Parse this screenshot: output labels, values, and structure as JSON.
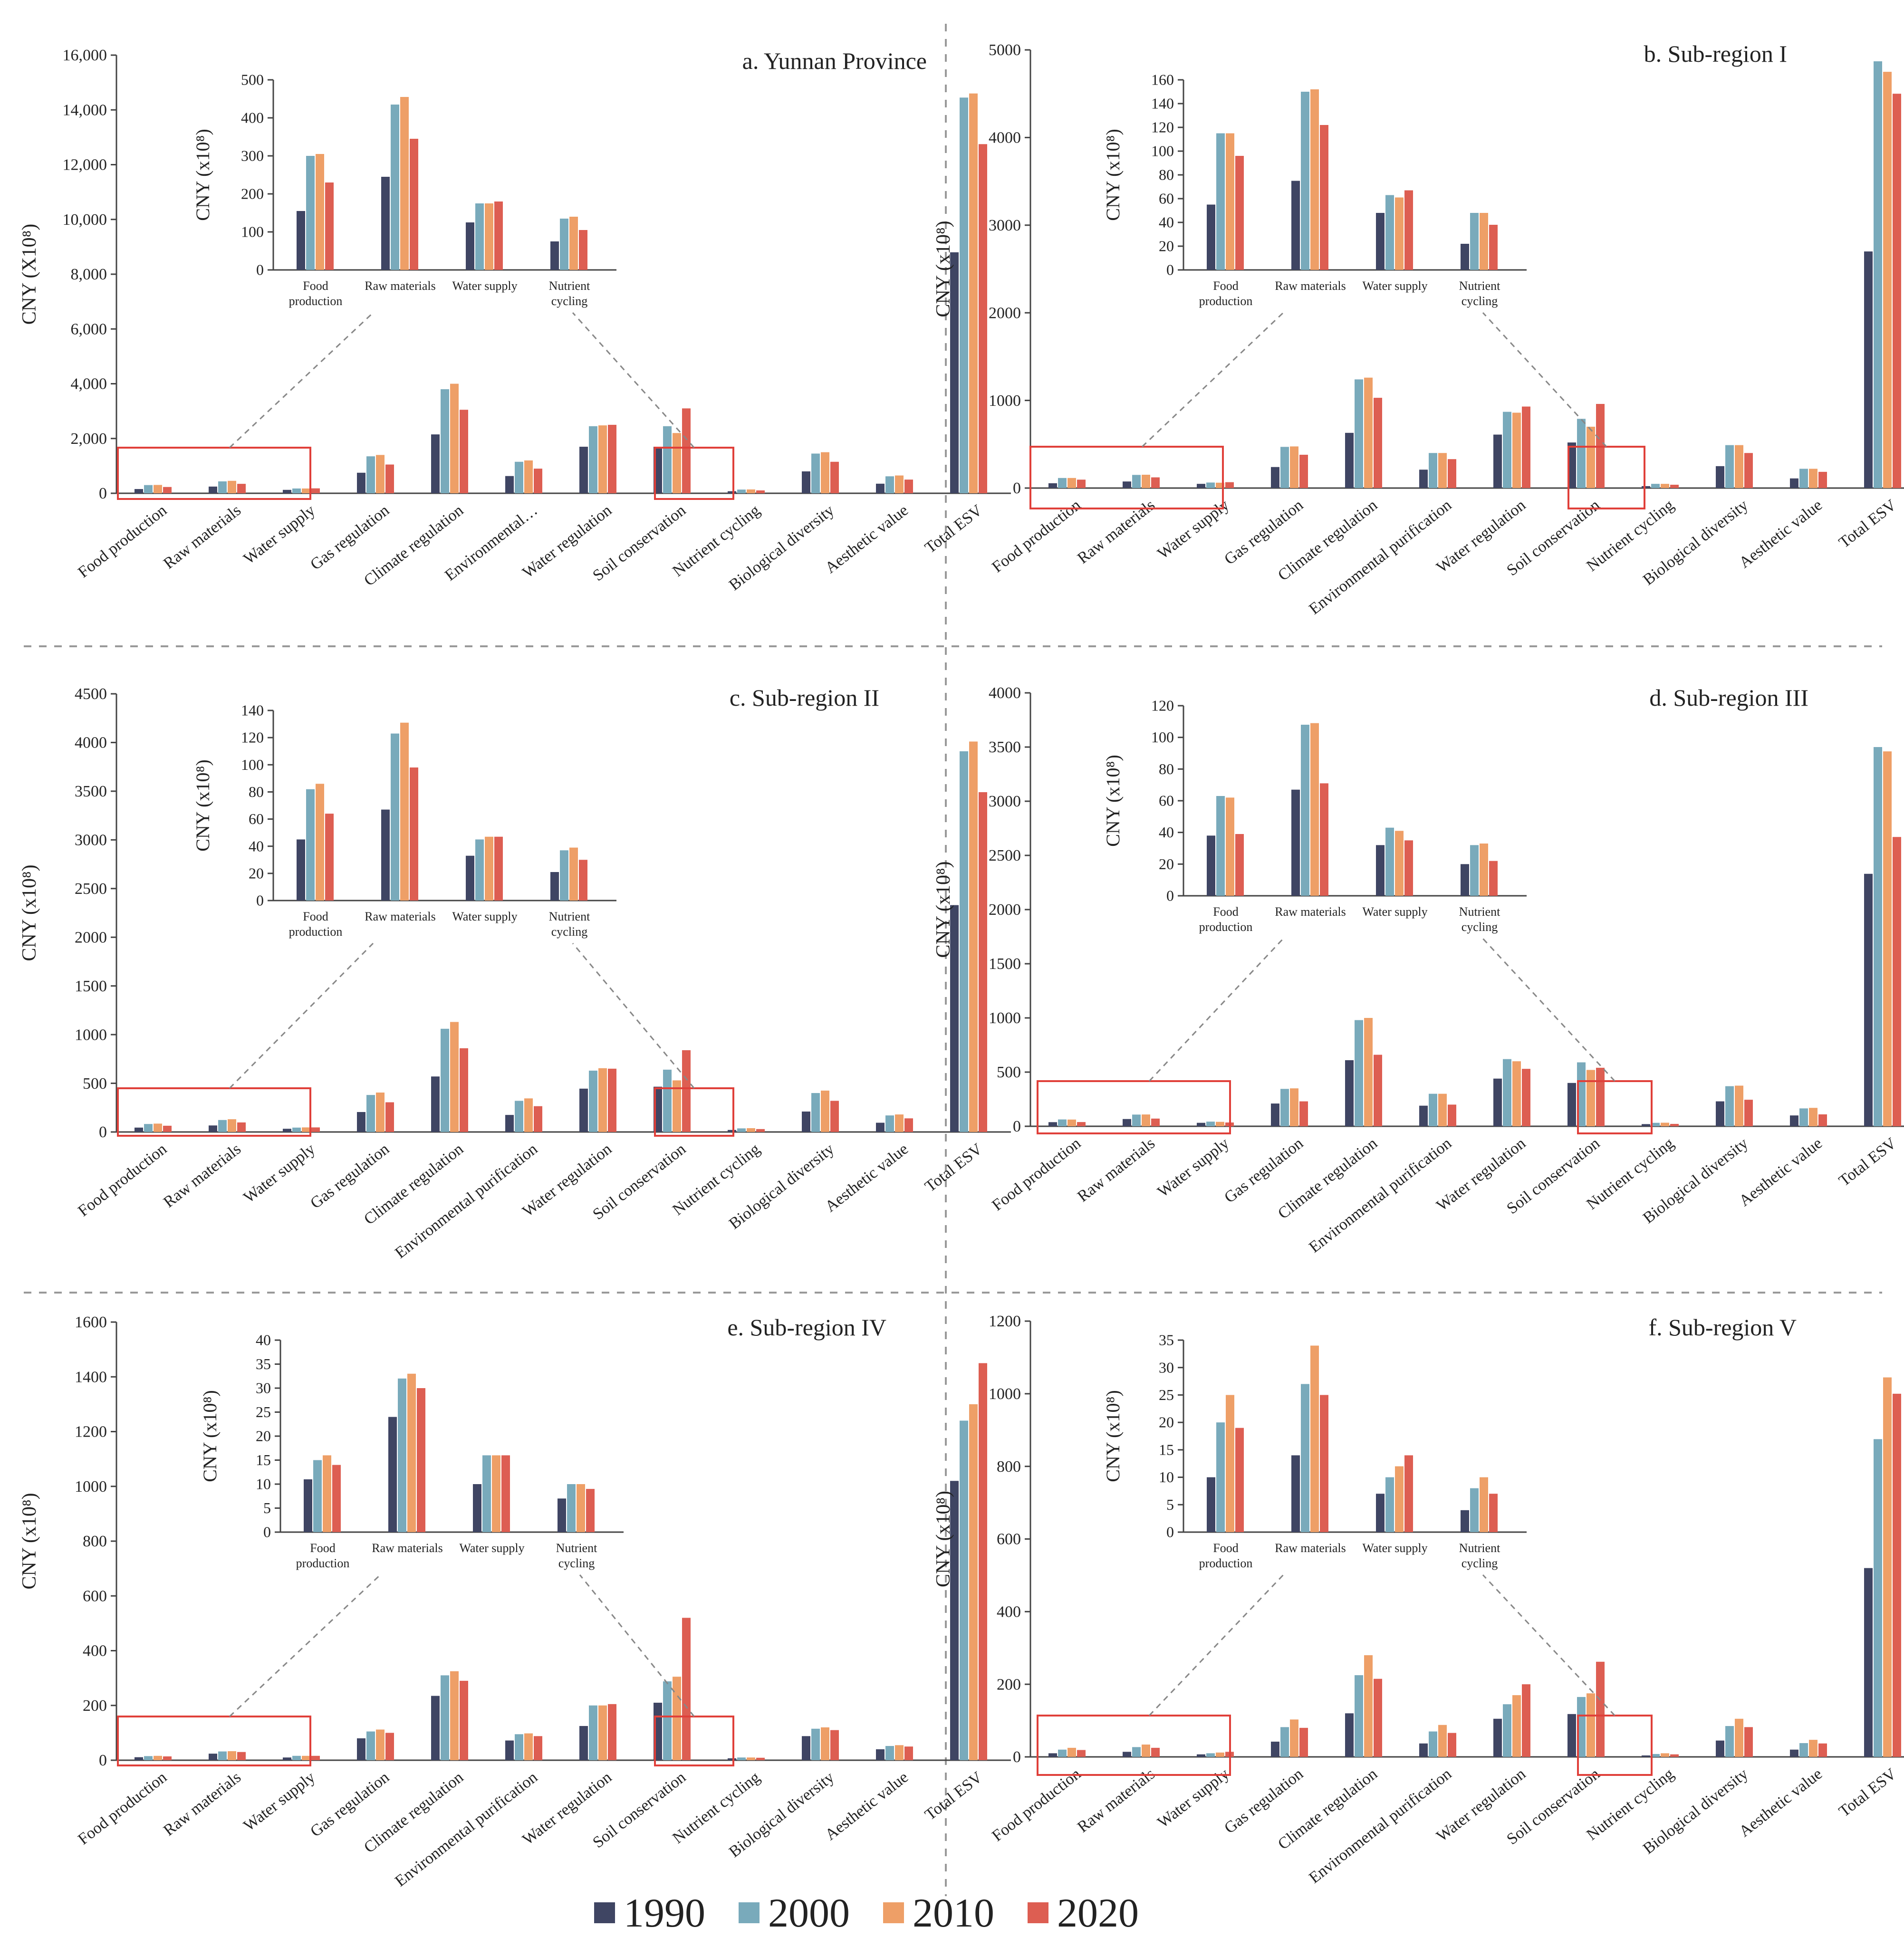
{
  "series_names": [
    "1990",
    "2000",
    "2010",
    "2020"
  ],
  "series_colors": [
    "#3f4563",
    "#79aabb",
    "#ee9f67",
    "#dd5e52"
  ],
  "ylabel_main": "CNY (X10⁸)",
  "ylabel_sub": "CNY (x10⁸)",
  "chart_data": [
    {
      "type": "bar",
      "title": "a. Yunnan Province",
      "ylabel": "CNY (X10⁸)",
      "ylim": [
        0,
        16000
      ],
      "ticks": [
        "0",
        "2,000",
        "4,000",
        "6,000",
        "8,000",
        "10,000",
        "12,000",
        "14,000",
        "16,000"
      ],
      "categories": [
        "Food production",
        "Raw materials",
        "Water supply",
        "Gas regulation",
        "Climate regulation",
        "Environmental…",
        "Water regulation",
        "Soil conservation",
        "Nutrient cycling",
        "Biological diversity",
        "Aesthetic value",
        "Total ESV"
      ],
      "series": [
        {
          "name": "1990",
          "values": [
            155,
            245,
            125,
            750,
            2150,
            630,
            1700,
            1700,
            75,
            800,
            350,
            8800
          ]
        },
        {
          "name": "2000",
          "values": [
            300,
            435,
            175,
            1350,
            3800,
            1150,
            2450,
            2450,
            135,
            1450,
            620,
            14450
          ]
        },
        {
          "name": "2010",
          "values": [
            305,
            455,
            175,
            1400,
            4000,
            1200,
            2480,
            2200,
            140,
            1500,
            650,
            14600
          ]
        },
        {
          "name": "2020",
          "values": [
            230,
            345,
            180,
            1050,
            3050,
            900,
            2500,
            3100,
            105,
            1150,
            500,
            12750
          ]
        }
      ],
      "inset": {
        "ylim": [
          0,
          500
        ],
        "ticks": [
          "0",
          "100",
          "200",
          "300",
          "400",
          "500"
        ],
        "categories": [
          "Food production",
          "Raw materials",
          "Water supply",
          "Nutrient cycling"
        ],
        "series": [
          {
            "name": "1990",
            "values": [
              155,
              245,
              125,
              75
            ]
          },
          {
            "name": "2000",
            "values": [
              300,
              435,
              175,
              135
            ]
          },
          {
            "name": "2010",
            "values": [
              305,
              455,
              175,
              140
            ]
          },
          {
            "name": "2020",
            "values": [
              230,
              345,
              180,
              105
            ]
          }
        ]
      }
    },
    {
      "type": "bar",
      "title": "b. Sub-region I",
      "ylabel": "CNY (x10⁸)",
      "ylim": [
        0,
        5000
      ],
      "ticks": [
        "0",
        "1000",
        "2000",
        "3000",
        "4000",
        "5000"
      ],
      "categories": [
        "Food production",
        "Raw materials",
        "Water supply",
        "Gas regulation",
        "Climate regulation",
        "Environmental purification",
        "Water regulation",
        "Soil conservation",
        "Nutrient cycling",
        "Biological diversity",
        "Aesthetic value",
        "Total ESV"
      ],
      "series": [
        {
          "name": "1990",
          "values": [
            55,
            75,
            48,
            240,
            630,
            210,
            610,
            520,
            22,
            250,
            110,
            2700
          ]
        },
        {
          "name": "2000",
          "values": [
            115,
            150,
            63,
            470,
            1240,
            400,
            870,
            790,
            48,
            490,
            220,
            4870
          ]
        },
        {
          "name": "2010",
          "values": [
            115,
            152,
            61,
            475,
            1260,
            400,
            860,
            700,
            48,
            490,
            220,
            4750
          ]
        },
        {
          "name": "2020",
          "values": [
            96,
            122,
            67,
            380,
            1030,
            330,
            930,
            960,
            38,
            400,
            185,
            4500
          ]
        }
      ],
      "inset": {
        "ylim": [
          0,
          160
        ],
        "ticks": [
          "0",
          "20",
          "40",
          "60",
          "80",
          "100",
          "120",
          "140",
          "160"
        ],
        "categories": [
          "Food production",
          "Raw materials",
          "Water supply",
          "Nutrient cycling"
        ],
        "series": [
          {
            "name": "1990",
            "values": [
              55,
              75,
              48,
              22
            ]
          },
          {
            "name": "2000",
            "values": [
              115,
              150,
              63,
              48
            ]
          },
          {
            "name": "2010",
            "values": [
              115,
              152,
              61,
              48
            ]
          },
          {
            "name": "2020",
            "values": [
              96,
              122,
              67,
              38
            ]
          }
        ]
      }
    },
    {
      "type": "bar",
      "title": "c. Sub-region II",
      "ylabel": "CNY (x10⁸)",
      "ylim": [
        0,
        4500
      ],
      "ticks": [
        "0",
        "500",
        "1000",
        "1500",
        "2000",
        "2500",
        "3000",
        "3500",
        "4000",
        "4500"
      ],
      "categories": [
        "Food production",
        "Raw materials",
        "Water supply",
        "Gas regulation",
        "Climate regulation",
        "Environmental purification",
        "Water regulation",
        "Soil conservation",
        "Nutrient cycling",
        "Biological diversity",
        "Aesthetic value",
        "Total ESV"
      ],
      "series": [
        {
          "name": "1990",
          "values": [
            45,
            67,
            33,
            205,
            570,
            175,
            445,
            465,
            21,
            210,
            95,
            2330
          ]
        },
        {
          "name": "2000",
          "values": [
            82,
            123,
            45,
            380,
            1060,
            320,
            630,
            640,
            37,
            400,
            170,
            3910
          ]
        },
        {
          "name": "2010",
          "values": [
            86,
            131,
            47,
            405,
            1130,
            345,
            655,
            530,
            39,
            425,
            180,
            4010
          ]
        },
        {
          "name": "2020",
          "values": [
            64,
            98,
            47,
            305,
            860,
            265,
            650,
            840,
            30,
            320,
            140,
            3490
          ]
        }
      ],
      "inset": {
        "ylim": [
          0,
          140
        ],
        "ticks": [
          "0",
          "20",
          "40",
          "60",
          "80",
          "100",
          "120",
          "140"
        ],
        "categories": [
          "Food production",
          "Raw materials",
          "Water supply",
          "Nutrient cycling"
        ],
        "series": [
          {
            "name": "1990",
            "values": [
              45,
              67,
              33,
              21
            ]
          },
          {
            "name": "2000",
            "values": [
              82,
              123,
              45,
              37
            ]
          },
          {
            "name": "2010",
            "values": [
              86,
              131,
              47,
              39
            ]
          },
          {
            "name": "2020",
            "values": [
              64,
              98,
              47,
              30
            ]
          }
        ]
      }
    },
    {
      "type": "bar",
      "title": "d. Sub-region III",
      "ylabel": "CNY (x10⁸)",
      "ylim": [
        0,
        4000
      ],
      "ticks": [
        "0",
        "500",
        "1000",
        "1500",
        "2000",
        "2500",
        "3000",
        "3500",
        "4000"
      ],
      "categories": [
        "Food production",
        "Raw materials",
        "Water supply",
        "Gas regulation",
        "Climate regulation",
        "Environmental purification",
        "Water regulation",
        "Soil conservation",
        "Nutrient cycling",
        "Biological diversity",
        "Aesthetic value",
        "Total ESV"
      ],
      "series": [
        {
          "name": "1990",
          "values": [
            38,
            67,
            32,
            210,
            610,
            190,
            440,
            400,
            20,
            230,
            100,
            2330
          ]
        },
        {
          "name": "2000",
          "values": [
            63,
            108,
            43,
            345,
            980,
            300,
            620,
            590,
            32,
            370,
            165,
            3500
          ]
        },
        {
          "name": "2010",
          "values": [
            62,
            109,
            41,
            350,
            1000,
            300,
            600,
            520,
            33,
            375,
            170,
            3460
          ]
        },
        {
          "name": "2020",
          "values": [
            39,
            71,
            35,
            230,
            660,
            200,
            530,
            540,
            22,
            245,
            110,
            2670
          ]
        }
      ],
      "inset": {
        "ylim": [
          0,
          120
        ],
        "ticks": [
          "0",
          "20",
          "40",
          "60",
          "80",
          "100",
          "120"
        ],
        "categories": [
          "Food production",
          "Raw materials",
          "Water supply",
          "Nutrient cycling"
        ],
        "series": [
          {
            "name": "1990",
            "values": [
              38,
              67,
              32,
              20
            ]
          },
          {
            "name": "2000",
            "values": [
              63,
              108,
              43,
              32
            ]
          },
          {
            "name": "2010",
            "values": [
              62,
              109,
              41,
              33
            ]
          },
          {
            "name": "2020",
            "values": [
              39,
              71,
              35,
              22
            ]
          }
        ]
      }
    },
    {
      "type": "bar",
      "title": "e. Sub-region IV",
      "ylabel": "CNY (x10⁸)",
      "ylim": [
        0,
        1600
      ],
      "ticks": [
        "0",
        "200",
        "400",
        "600",
        "800",
        "1000",
        "1200",
        "1400",
        "1600"
      ],
      "categories": [
        "Food production",
        "Raw materials",
        "Water supply",
        "Gas regulation",
        "Climate regulation",
        "Environmental purification",
        "Water regulation",
        "Soil conservation",
        "Nutrient cycling",
        "Biological diversity",
        "Aesthetic value",
        "Total ESV"
      ],
      "series": [
        {
          "name": "1990",
          "values": [
            11,
            24,
            10,
            80,
            235,
            72,
            125,
            210,
            7,
            88,
            40,
            1020
          ]
        },
        {
          "name": "2000",
          "values": [
            15,
            32,
            16,
            105,
            310,
            95,
            200,
            288,
            10,
            115,
            52,
            1240
          ]
        },
        {
          "name": "2010",
          "values": [
            16,
            33,
            16,
            112,
            325,
            98,
            200,
            305,
            10,
            120,
            55,
            1300
          ]
        },
        {
          "name": "2020",
          "values": [
            14,
            30,
            16,
            100,
            290,
            88,
            205,
            520,
            9,
            110,
            50,
            1450
          ]
        }
      ],
      "inset": {
        "ylim": [
          0,
          40
        ],
        "ticks": [
          "0",
          "5",
          "10",
          "15",
          "20",
          "25",
          "30",
          "35",
          "40"
        ],
        "categories": [
          "Food production",
          "Raw materials",
          "Water supply",
          "Nutrient cycling"
        ],
        "series": [
          {
            "name": "1990",
            "values": [
              11,
              24,
              10,
              7
            ]
          },
          {
            "name": "2000",
            "values": [
              15,
              32,
              16,
              10
            ]
          },
          {
            "name": "2010",
            "values": [
              16,
              33,
              16,
              10
            ]
          },
          {
            "name": "2020",
            "values": [
              14,
              30,
              16,
              9
            ]
          }
        ]
      }
    },
    {
      "type": "bar",
      "title": "f. Sub-region V",
      "ylabel": "CNY (x10⁸)",
      "ylim": [
        0,
        1200
      ],
      "ticks": [
        "0",
        "200",
        "400",
        "600",
        "800",
        "1000",
        "1200"
      ],
      "categories": [
        "Food production",
        "Raw materials",
        "Water supply",
        "Gas regulation",
        "Climate regulation",
        "Environmental purification",
        "Water regulation",
        "Soil conservation",
        "Nutrient cycling",
        "Biological diversity",
        "Aesthetic value",
        "Total ESV"
      ],
      "series": [
        {
          "name": "1990",
          "values": [
            10,
            14,
            7,
            42,
            120,
            37,
            105,
            118,
            4,
            45,
            20,
            520
          ]
        },
        {
          "name": "2000",
          "values": [
            20,
            27,
            10,
            82,
            225,
            70,
            145,
            165,
            8,
            85,
            38,
            875
          ]
        },
        {
          "name": "2010",
          "values": [
            25,
            34,
            12,
            103,
            280,
            88,
            170,
            175,
            10,
            105,
            47,
            1045
          ]
        },
        {
          "name": "2020",
          "values": [
            19,
            25,
            14,
            80,
            215,
            66,
            200,
            262,
            7,
            82,
            37,
            1000
          ]
        }
      ],
      "inset": {
        "ylim": [
          0,
          35
        ],
        "ticks": [
          "0",
          "5",
          "10",
          "15",
          "20",
          "25",
          "30",
          "35"
        ],
        "categories": [
          "Food production",
          "Raw materials",
          "Water supply",
          "Nutrient cycling"
        ],
        "series": [
          {
            "name": "1990",
            "values": [
              10,
              14,
              7,
              4
            ]
          },
          {
            "name": "2000",
            "values": [
              20,
              27,
              10,
              8
            ]
          },
          {
            "name": "2010",
            "values": [
              25,
              34,
              12,
              10
            ]
          },
          {
            "name": "2020",
            "values": [
              19,
              25,
              14,
              7
            ]
          }
        ]
      }
    }
  ]
}
